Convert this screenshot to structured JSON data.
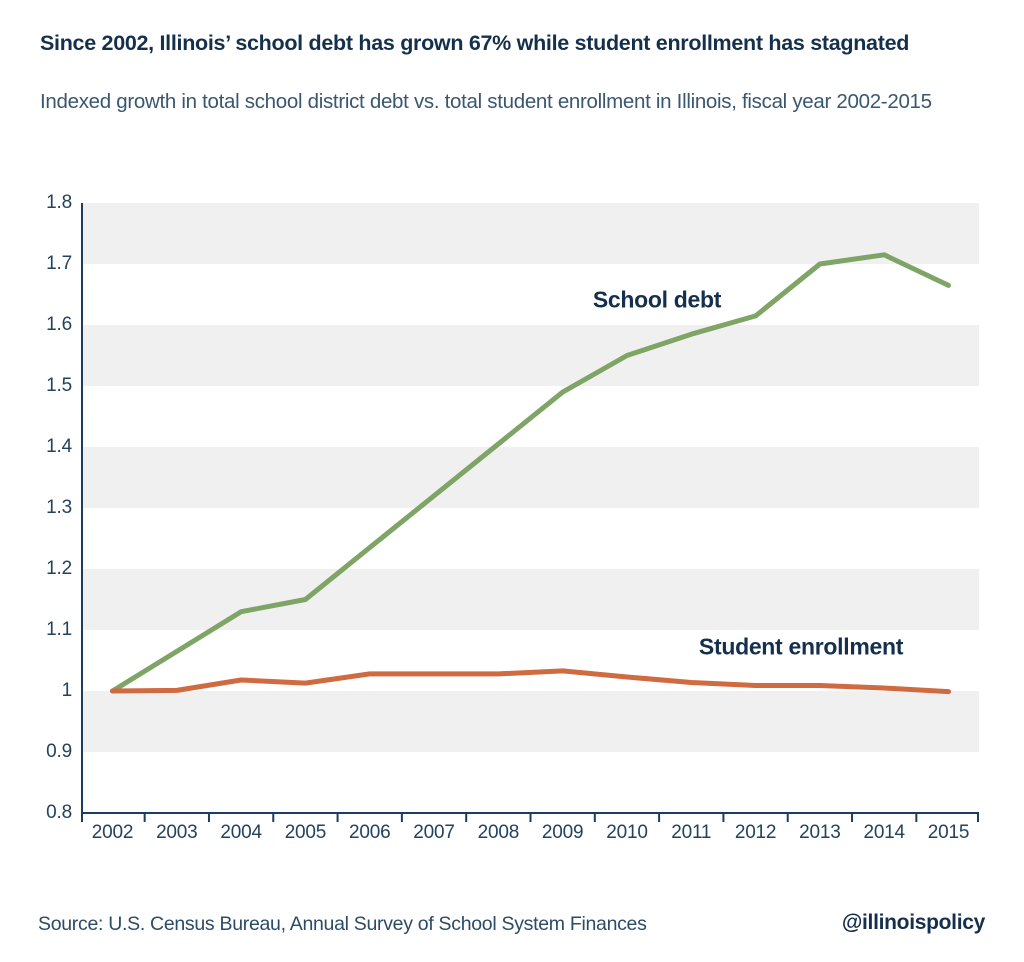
{
  "header": {
    "title": "Since 2002, Illinois’ school debt has grown 67% while student enrollment has stagnated",
    "subtitle": "Indexed growth in total school district debt vs. total student enrollment in Illinois, fiscal year 2002-2015"
  },
  "chart_data": {
    "type": "line",
    "title": "Since 2002, Illinois’ school debt has grown 67% while student enrollment has stagnated",
    "subtitle": "Indexed growth in total school district debt vs. total student enrollment in Illinois, fiscal year 2002-2015",
    "categories": [
      "2002",
      "2003",
      "2004",
      "2005",
      "2006",
      "2007",
      "2008",
      "2009",
      "2010",
      "2011",
      "2012",
      "2013",
      "2014",
      "2015"
    ],
    "series": [
      {
        "name": "School debt",
        "color": "#7fa566",
        "values": [
          1.0,
          1.065,
          1.13,
          1.15,
          1.235,
          1.32,
          1.405,
          1.49,
          1.55,
          1.585,
          1.615,
          1.7,
          1.715,
          1.665
        ]
      },
      {
        "name": "Student enrollment",
        "color": "#d06a40",
        "values": [
          1.0,
          1.001,
          1.018,
          1.013,
          1.028,
          1.028,
          1.028,
          1.033,
          1.023,
          1.014,
          1.009,
          1.009,
          1.005,
          0.999
        ]
      }
    ],
    "xlabel": "",
    "ylabel": "",
    "ylim": [
      0.8,
      1.8
    ],
    "y_tick_step": 0.1,
    "y_tick_labels": [
      "0.8",
      "0.9",
      "1",
      "1.1",
      "1.2",
      "1.3",
      "1.4",
      "1.5",
      "1.6",
      "1.7",
      "1.8"
    ],
    "grid": "alternating horizontal gray bands, no gridlines",
    "band_color": "#f0f0f0",
    "axis_color": "#1d3d5f",
    "legend": "none (inline series labels on chart)"
  },
  "footer": {
    "source": "Source: U.S. Census Bureau, Annual Survey of School System Finances",
    "handle": "@illinoispolicy"
  }
}
